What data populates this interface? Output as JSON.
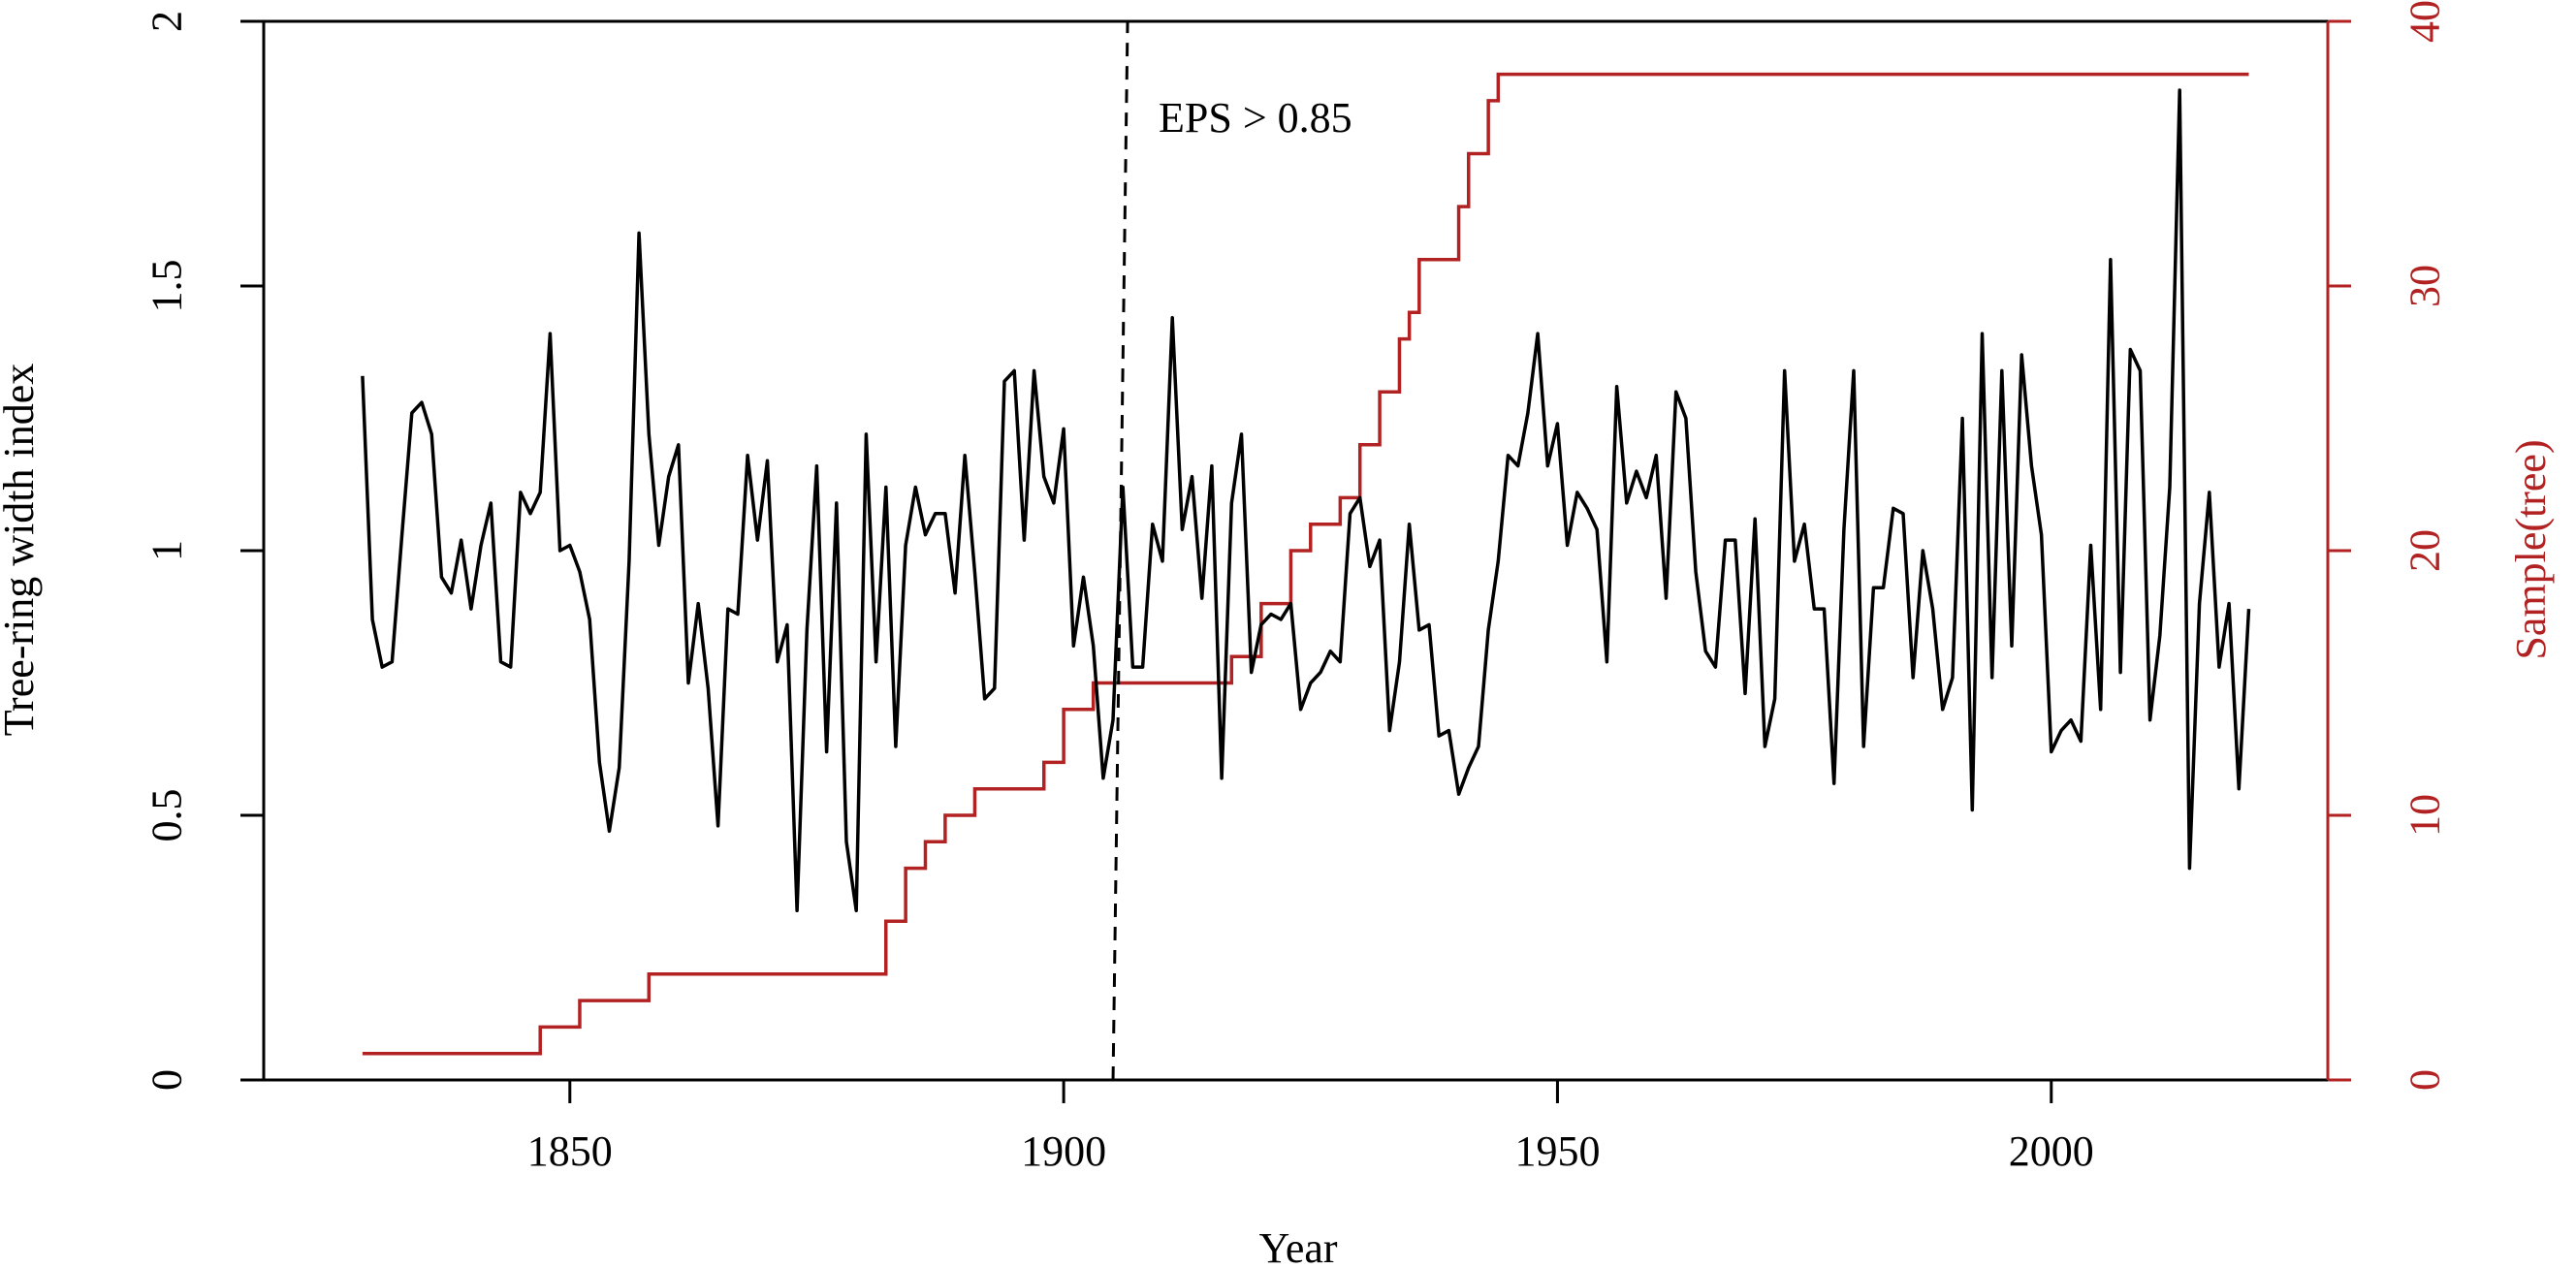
{
  "chart_data": {
    "type": "line",
    "title": "",
    "xlabel": "Year",
    "ylabel": "Tree-ring width index",
    "ylabel_right": "Sample(tree)",
    "xlim": [
      1819,
      2028
    ],
    "ylim": [
      0,
      2
    ],
    "ylim_right": [
      0,
      40
    ],
    "x_ticks": [
      1850,
      1900,
      1950,
      2000
    ],
    "y_ticks": [
      0,
      0.5,
      1,
      1.5,
      2
    ],
    "y_tick_labels": [
      "0",
      "0.5",
      "1",
      "1.5",
      "2"
    ],
    "y_right_ticks": [
      0,
      10,
      20,
      30,
      40
    ],
    "grid": false,
    "annotation": {
      "text": "EPS > 0.85",
      "x": 1905
    },
    "colors": {
      "index": "#000000",
      "sample": "#b22222",
      "right_axis": "#b22222"
    },
    "series": [
      {
        "name": "Tree-ring width index",
        "axis": "left",
        "x_start": 1829,
        "values": [
          1.33,
          0.87,
          0.78,
          0.79,
          1.03,
          1.26,
          1.28,
          1.22,
          0.95,
          0.92,
          1.02,
          0.89,
          1.01,
          1.09,
          0.79,
          0.78,
          1.11,
          1.07,
          1.11,
          1.41,
          1.0,
          1.01,
          0.96,
          0.87,
          0.6,
          0.47,
          0.59,
          0.98,
          1.6,
          1.22,
          1.01,
          1.14,
          1.2,
          0.75,
          0.9,
          0.74,
          0.48,
          0.89,
          0.88,
          1.18,
          1.02,
          1.17,
          0.79,
          0.86,
          0.32,
          0.85,
          1.16,
          0.62,
          1.09,
          0.45,
          0.32,
          1.22,
          0.79,
          1.12,
          0.63,
          1.01,
          1.12,
          1.03,
          1.07,
          1.07,
          0.92,
          1.18,
          0.96,
          0.72,
          0.74,
          1.32,
          1.34,
          1.02,
          1.34,
          1.14,
          1.09,
          1.23,
          0.82,
          0.95,
          0.82,
          0.57,
          0.68,
          1.12,
          0.78,
          0.78,
          1.05,
          0.98,
          1.44,
          1.04,
          1.14,
          0.91,
          1.16,
          0.57,
          1.09,
          1.22,
          0.77,
          0.86,
          0.88,
          0.87,
          0.9,
          0.7,
          0.75,
          0.77,
          0.81,
          0.79,
          1.07,
          1.1,
          0.97,
          1.02,
          0.66,
          0.79,
          1.05,
          0.85,
          0.86,
          0.65,
          0.66,
          0.54,
          0.59,
          0.63,
          0.85,
          0.98,
          1.18,
          1.16,
          1.26,
          1.41,
          1.16,
          1.24,
          1.01,
          1.11,
          1.08,
          1.04,
          0.79,
          1.31,
          1.09,
          1.15,
          1.1,
          1.18,
          0.91,
          1.3,
          1.25,
          0.96,
          0.81,
          0.78,
          1.02,
          1.02,
          0.73,
          1.06,
          0.63,
          0.72,
          1.34,
          0.98,
          1.05,
          0.89,
          0.89,
          0.56,
          1.04,
          1.34,
          0.63,
          0.93,
          0.93,
          1.08,
          1.07,
          0.76,
          1.0,
          0.89,
          0.7,
          0.76,
          1.25,
          0.51,
          1.41,
          0.76,
          1.34,
          0.82,
          1.37,
          1.16,
          1.03,
          0.62,
          0.66,
          0.68,
          0.64,
          1.01,
          0.7,
          1.55,
          0.77,
          1.38,
          1.34,
          0.68,
          0.84,
          1.12,
          1.87,
          0.4,
          0.9,
          1.11,
          0.78,
          0.9,
          0.55,
          0.89
        ]
      },
      {
        "name": "Sample(tree)",
        "axis": "right",
        "step": true,
        "x_start": 1829,
        "x_end": 2020,
        "breaks": [
          [
            1829,
            1
          ],
          [
            1847,
            2
          ],
          [
            1851,
            3
          ],
          [
            1858,
            4
          ],
          [
            1882,
            6
          ],
          [
            1884,
            8
          ],
          [
            1886,
            9
          ],
          [
            1888,
            10
          ],
          [
            1891,
            11
          ],
          [
            1898,
            12
          ],
          [
            1900,
            14
          ],
          [
            1903,
            15
          ],
          [
            1917,
            16
          ],
          [
            1920,
            18
          ],
          [
            1923,
            20
          ],
          [
            1925,
            21
          ],
          [
            1928,
            22
          ],
          [
            1930,
            24
          ],
          [
            1932,
            26
          ],
          [
            1934,
            28
          ],
          [
            1935,
            29
          ],
          [
            1936,
            31
          ],
          [
            1940,
            33
          ],
          [
            1941,
            35
          ],
          [
            1943,
            37
          ],
          [
            1944,
            38
          ]
        ]
      }
    ]
  }
}
